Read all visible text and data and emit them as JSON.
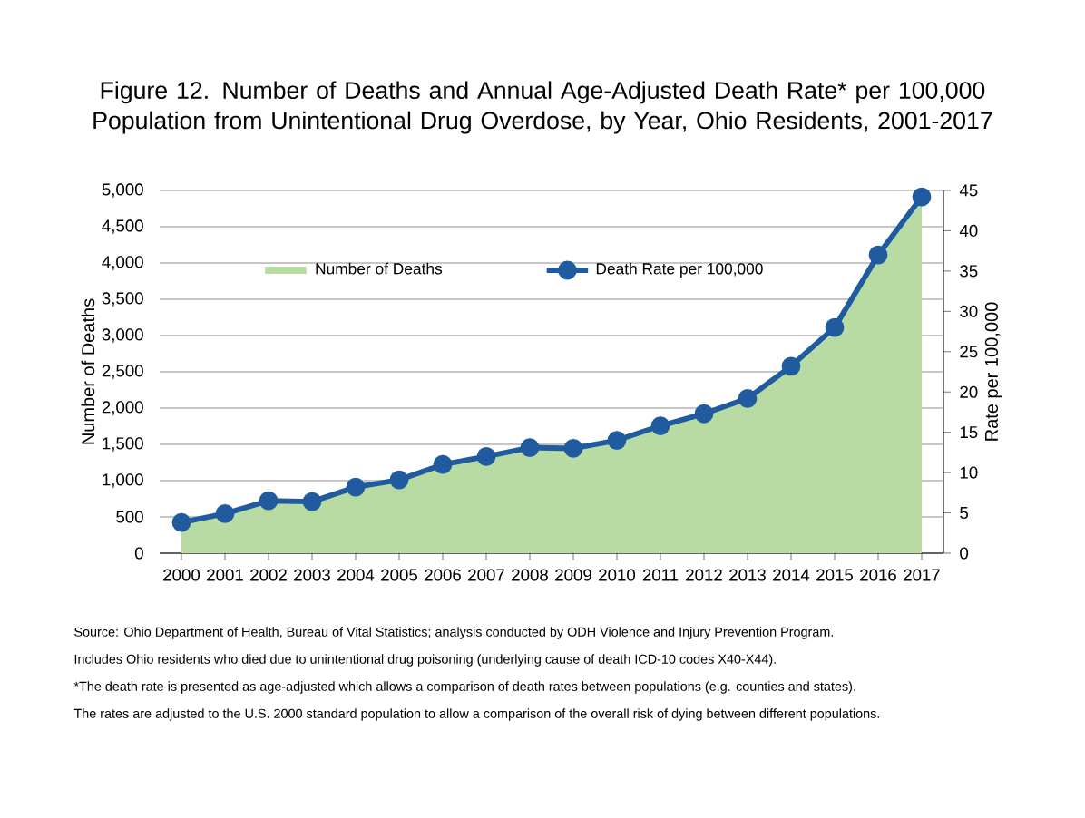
{
  "chart_data": {
    "type": "line",
    "title": "Figure 12. Number of Deaths and Annual Age-Adjusted Death Rate* per 100,000 Population from Unintentional Drug Overdose, by Year, Ohio Residents, 2001-2017",
    "ylabel": "Number of Deaths",
    "y2label": "Rate per 100,000",
    "categories": [
      "2000",
      "2001",
      "2002",
      "2003",
      "2004",
      "2005",
      "2006",
      "2007",
      "2008",
      "2009",
      "2010",
      "2011",
      "2012",
      "2013",
      "2014",
      "2015",
      "2016",
      "2017"
    ],
    "series": [
      {
        "name": "Number of Deaths",
        "type": "area",
        "color": "#b7dba3",
        "values": [
          420,
          540,
          720,
          700,
          930,
          1020,
          1250,
          1350,
          1470,
          1450,
          1540,
          1760,
          1910,
          2110,
          2530,
          3050,
          4050,
          4850
        ]
      },
      {
        "name": "Death Rate per 100,000",
        "axis": "y2",
        "color": "#1f5b9e",
        "marker": "circle",
        "line_style": "solid",
        "values": [
          3.8,
          4.9,
          6.5,
          6.4,
          8.2,
          9.1,
          11.0,
          12.0,
          13.1,
          13.0,
          14.0,
          15.8,
          17.3,
          19.2,
          23.2,
          28.0,
          37.0,
          44.2
        ]
      }
    ],
    "ylim": [
      0,
      5000
    ],
    "yticks": [
      0,
      500,
      {
        "value": 1000,
        "label": "1,000"
      },
      {
        "value": 1500,
        "label": "1,500"
      },
      {
        "value": 2000,
        "label": "2,000"
      },
      {
        "value": 2500,
        "label": "2,500"
      },
      {
        "value": 3000,
        "label": "3,000"
      },
      {
        "value": 3500,
        "label": "3,500"
      },
      {
        "value": 4000,
        "label": "4,000"
      },
      {
        "value": 4500,
        "label": "4,500"
      },
      {
        "value": 5000,
        "label": "5,000"
      }
    ],
    "y2lim": [
      0,
      45
    ],
    "y2ticks": [
      0,
      5,
      10,
      15,
      20,
      25,
      30,
      35,
      40,
      45
    ],
    "grid": "y",
    "legend": "top",
    "annotations": [
      "Source: Ohio Department of Health, Bureau of Vital Statistics; analysis conducted by ODH Violence and Injury Prevention Program.",
      "Includes Ohio residents who died due to unintentional drug poisoning (underlying cause of death ICD-10 codes X40-X44).",
      "*The death rate is presented as age-adjusted which allows a comparison of death rates between populations (e.g. counties and states).",
      "The rates are adjusted to the U.S. 2000 standard population to allow a comparison of the overall risk of dying between different populations."
    ]
  }
}
